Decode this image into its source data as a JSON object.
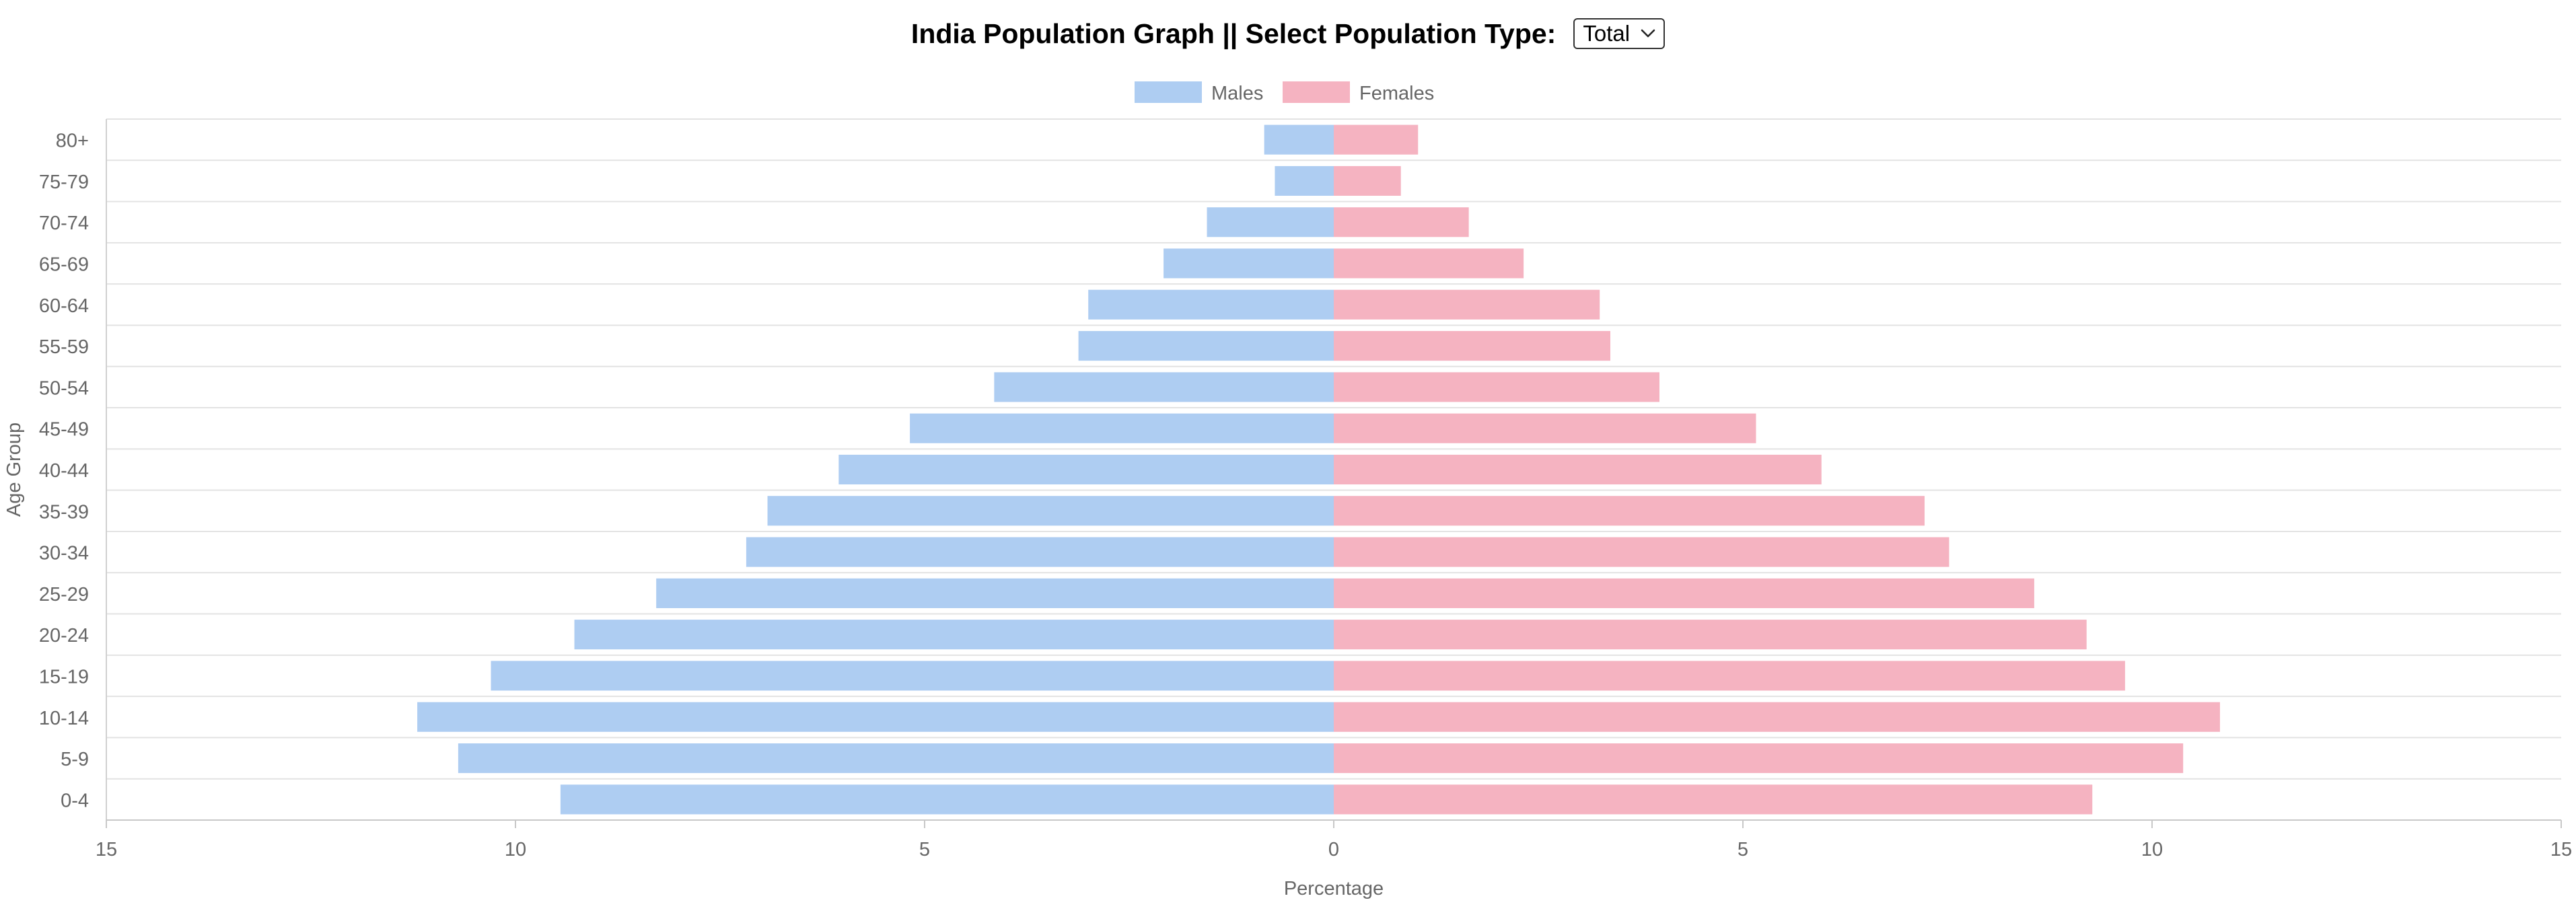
{
  "header": {
    "title": "India Population Graph || Select Population Type:",
    "select": {
      "selected": "Total",
      "icon": "chevron-down-icon"
    }
  },
  "chart_data": {
    "type": "bar",
    "orientation": "horizontal",
    "layout": "population-pyramid",
    "title": "",
    "xlabel": "Percentage",
    "ylabel": "Age Group",
    "xlim": [
      -15,
      15
    ],
    "x_ticks": [
      -15,
      -10,
      -5,
      0,
      5,
      10,
      15
    ],
    "x_tick_labels": [
      "15",
      "10",
      "5",
      "0",
      "5",
      "10",
      "15"
    ],
    "categories": [
      "80+",
      "75-79",
      "70-74",
      "65-69",
      "60-64",
      "55-59",
      "50-54",
      "45-49",
      "40-44",
      "35-39",
      "30-34",
      "25-29",
      "20-24",
      "15-19",
      "10-14",
      "5-9",
      "0-4"
    ],
    "series": [
      {
        "name": "Males",
        "color": "#AECDF2",
        "direction": "left",
        "values": [
          0.85,
          0.72,
          1.55,
          2.08,
          3.0,
          3.12,
          4.15,
          5.18,
          6.05,
          6.92,
          7.18,
          8.28,
          9.28,
          10.3,
          11.2,
          10.7,
          9.45
        ]
      },
      {
        "name": "Females",
        "color": "#F5B3C1",
        "direction": "right",
        "values": [
          1.03,
          0.82,
          1.65,
          2.32,
          3.25,
          3.38,
          3.98,
          5.16,
          5.96,
          7.22,
          7.52,
          8.56,
          9.2,
          9.67,
          10.83,
          10.38,
          9.27
        ]
      }
    ],
    "legend": "top-center",
    "grid": "horizontal"
  }
}
